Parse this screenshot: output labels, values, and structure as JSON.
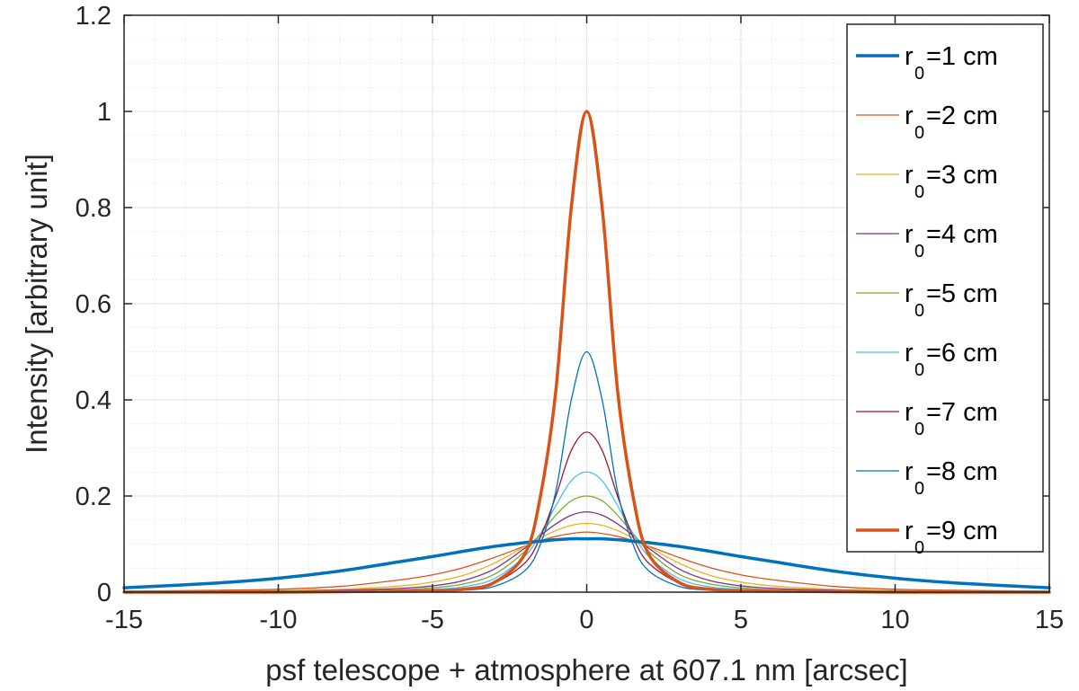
{
  "chart_data": {
    "type": "line",
    "title": "",
    "xlabel": "psf telescope + atmosphere at 607.1 nm [arcsec]",
    "ylabel": "Intensity [arbitrary unit]",
    "xlim": [
      -15,
      15
    ],
    "ylim": [
      0,
      1.2
    ],
    "x_ticks": [
      -15,
      -10,
      -5,
      0,
      5,
      10,
      15
    ],
    "x_tick_labels": [
      "-15",
      "-10",
      "-5",
      "0",
      "5",
      "10",
      "15"
    ],
    "y_ticks": [
      0,
      0.2,
      0.4,
      0.6,
      0.8,
      1,
      1.2
    ],
    "y_tick_labels": [
      "0",
      "0.2",
      "0.4",
      "0.6",
      "0.8",
      "1",
      "1.2"
    ],
    "grid": true,
    "minor_grid": true,
    "legend_position": "top-right",
    "x": [
      -15,
      -12,
      -10,
      -8,
      -6,
      -5,
      -4,
      -3,
      -2,
      -1.5,
      -1,
      -0.5,
      0,
      0.5,
      1,
      1.5,
      2,
      3,
      4,
      5,
      6,
      8,
      10,
      12,
      15
    ],
    "series": [
      {
        "name_main": "r",
        "name_sub": "0",
        "name_rest": "=1 cm",
        "color": "#0072BD",
        "width": 3.5,
        "values": [
          0.009,
          0.019,
          0.029,
          0.044,
          0.064,
          0.074,
          0.085,
          0.095,
          0.103,
          0.106,
          0.109,
          0.111,
          0.111,
          0.111,
          0.109,
          0.106,
          0.103,
          0.095,
          0.085,
          0.074,
          0.064,
          0.044,
          0.029,
          0.019,
          0.009
        ]
      },
      {
        "name_main": "r",
        "name_sub": "0",
        "name_rest": "=2 cm",
        "color": "#D95319",
        "width": 1.3,
        "values": [
          0.002,
          0.004,
          0.006,
          0.012,
          0.026,
          0.036,
          0.051,
          0.072,
          0.096,
          0.107,
          0.116,
          0.122,
          0.125,
          0.122,
          0.116,
          0.107,
          0.096,
          0.072,
          0.051,
          0.036,
          0.026,
          0.012,
          0.006,
          0.004,
          0.002
        ]
      },
      {
        "name_main": "r",
        "name_sub": "0",
        "name_rest": "=3 cm",
        "color": "#EDB120",
        "width": 1.3,
        "values": [
          0.001,
          0.002,
          0.003,
          0.006,
          0.013,
          0.021,
          0.035,
          0.06,
          0.095,
          0.113,
          0.128,
          0.139,
          0.143,
          0.139,
          0.128,
          0.113,
          0.095,
          0.06,
          0.035,
          0.021,
          0.013,
          0.006,
          0.003,
          0.002,
          0.001
        ]
      },
      {
        "name_main": "r",
        "name_sub": "0",
        "name_rest": "=4 cm",
        "color": "#7E2F8E",
        "width": 1.3,
        "values": [
          0.001,
          0.001,
          0.002,
          0.004,
          0.008,
          0.013,
          0.024,
          0.048,
          0.092,
          0.118,
          0.142,
          0.16,
          0.167,
          0.16,
          0.142,
          0.118,
          0.092,
          0.048,
          0.024,
          0.013,
          0.008,
          0.004,
          0.002,
          0.001,
          0.001
        ]
      },
      {
        "name_main": "r",
        "name_sub": "0",
        "name_rest": "=5 cm",
        "color": "#77AC30",
        "width": 1.3,
        "values": [
          0.0,
          0.001,
          0.001,
          0.002,
          0.005,
          0.009,
          0.017,
          0.037,
          0.085,
          0.122,
          0.16,
          0.19,
          0.2,
          0.19,
          0.16,
          0.122,
          0.085,
          0.037,
          0.017,
          0.009,
          0.005,
          0.002,
          0.001,
          0.001,
          0.0
        ]
      },
      {
        "name_main": "r",
        "name_sub": "0",
        "name_rest": "=6 cm",
        "color": "#4DBEEE",
        "width": 1.3,
        "values": [
          0.0,
          0.0,
          0.001,
          0.002,
          0.003,
          0.006,
          0.011,
          0.028,
          0.075,
          0.122,
          0.18,
          0.232,
          0.25,
          0.232,
          0.18,
          0.122,
          0.075,
          0.028,
          0.011,
          0.006,
          0.003,
          0.002,
          0.001,
          0.0,
          0.0
        ]
      },
      {
        "name_main": "r",
        "name_sub": "0",
        "name_rest": "=7 cm",
        "color": "#A2142F",
        "width": 1.3,
        "values": [
          0.0,
          0.0,
          0.0,
          0.001,
          0.002,
          0.004,
          0.007,
          0.019,
          0.061,
          0.115,
          0.2,
          0.295,
          0.333,
          0.295,
          0.2,
          0.115,
          0.061,
          0.019,
          0.007,
          0.004,
          0.002,
          0.001,
          0.0,
          0.0,
          0.0
        ]
      },
      {
        "name_main": "r",
        "name_sub": "0",
        "name_rest": "=8 cm",
        "color": "#0072BD",
        "width": 1.3,
        "values": [
          0.0,
          0.0,
          0.0,
          0.001,
          0.001,
          0.002,
          0.004,
          0.012,
          0.045,
          0.1,
          0.21,
          0.4,
          0.5,
          0.4,
          0.21,
          0.1,
          0.045,
          0.012,
          0.004,
          0.002,
          0.001,
          0.001,
          0.0,
          0.0,
          0.0
        ]
      },
      {
        "name_main": "r",
        "name_sub": "0",
        "name_rest": "=9 cm",
        "color": "#D95319",
        "width": 3.5,
        "values": [
          0.0,
          0.0,
          0.0,
          0.001,
          0.002,
          0.003,
          0.006,
          0.02,
          0.08,
          0.2,
          0.42,
          0.8,
          1.0,
          0.8,
          0.42,
          0.2,
          0.08,
          0.02,
          0.006,
          0.003,
          0.002,
          0.001,
          0.0,
          0.0,
          0.0
        ]
      }
    ]
  }
}
